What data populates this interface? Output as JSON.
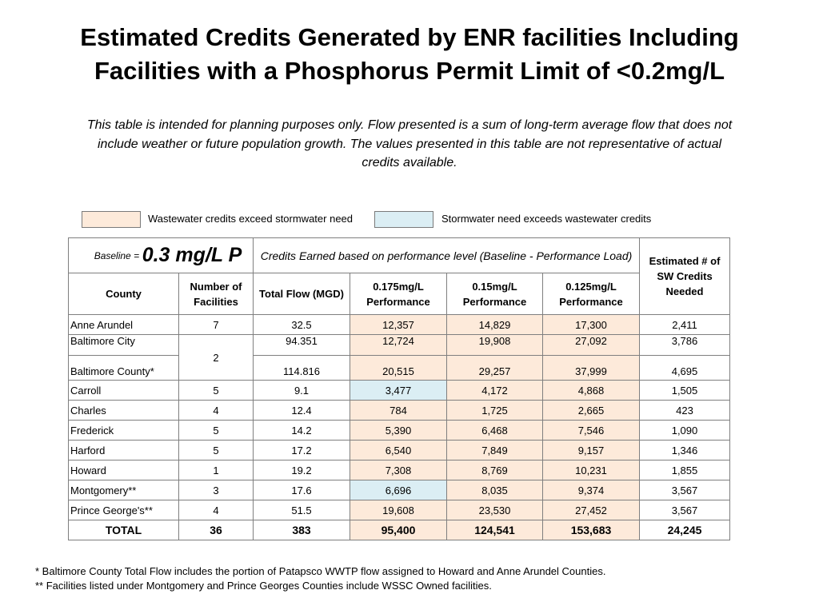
{
  "title_line1": "Estimated Credits Generated by ENR facilities Including",
  "title_line2": "Facilities with a Phosphorus Permit Limit of <0.2mg/L",
  "subtitle_line1": "This table is intended for planning purposes only. Flow presented is a sum of long-term average flow that does not",
  "subtitle_line2": "include weather or future population growth. The values presented in this table are not representative of actual",
  "subtitle_line3": "credits available.",
  "legend": {
    "peach_label": "Wastewater credits exceed stormwater need",
    "blue_label": "Stormwater need exceeds wastewater credits",
    "peach_color": "#fdeada",
    "blue_color": "#dbeef4"
  },
  "table": {
    "baseline_label": "Baseline =",
    "baseline_value": "0.3 mg/L P",
    "credits_header": "Credits Earned based on performance level (Baseline - Performance Load)",
    "estimated_header": "Estimated # of SW Credits Needed",
    "col_county": "County",
    "col_facilities": "Number of Facilities",
    "col_flow": "Total Flow (MGD)",
    "col_p175": "0.175mg/L Performance",
    "col_p15": "0.15mg/L Performance",
    "col_p125": "0.125mg/L Performance",
    "rows": [
      {
        "county": "Anne Arundel",
        "facilities": "7",
        "flow": "32.5",
        "p175": "12,357",
        "p15": "14,829",
        "p125": "17,300",
        "sw": "2,411"
      },
      {
        "county": "Baltimore City",
        "facilities": "2",
        "flow": "94.351",
        "p175": "12,724",
        "p15": "19,908",
        "p125": "27,092",
        "sw": "3,786"
      },
      {
        "county": "Baltimore County*",
        "facilities": "",
        "flow": "114.816",
        "p175": "20,515",
        "p15": "29,257",
        "p125": "37,999",
        "sw": "4,695"
      },
      {
        "county": "Carroll",
        "facilities": "5",
        "flow": "9.1",
        "p175": "3,477",
        "p15": "4,172",
        "p125": "4,868",
        "sw": "1,505"
      },
      {
        "county": "Charles",
        "facilities": "4",
        "flow": "12.4",
        "p175": "784",
        "p15": "1,725",
        "p125": "2,665",
        "sw": "423"
      },
      {
        "county": "Frederick",
        "facilities": "5",
        "flow": "14.2",
        "p175": "5,390",
        "p15": "6,468",
        "p125": "7,546",
        "sw": "1,090"
      },
      {
        "county": "Harford",
        "facilities": "5",
        "flow": "17.2",
        "p175": "6,540",
        "p15": "7,849",
        "p125": "9,157",
        "sw": "1,346"
      },
      {
        "county": "Howard",
        "facilities": "1",
        "flow": "19.2",
        "p175": "7,308",
        "p15": "8,769",
        "p125": "10,231",
        "sw": "1,855"
      },
      {
        "county": "Montgomery**",
        "facilities": "3",
        "flow": "17.6",
        "p175": "6,696",
        "p15": "8,035",
        "p125": "9,374",
        "sw": "3,567"
      },
      {
        "county": "Prince George's**",
        "facilities": "4",
        "flow": "51.5",
        "p175": "19,608",
        "p15": "23,530",
        "p125": "27,452",
        "sw": "3,567"
      }
    ],
    "total": {
      "county": "TOTAL",
      "facilities": "36",
      "flow": "383",
      "p175": "95,400",
      "p15": "124,541",
      "p125": "153,683",
      "sw": "24,245"
    }
  },
  "footnote1": "* Baltimore County Total Flow includes the portion of Patapsco WWTP flow assigned to Howard and Anne Arundel Counties.",
  "footnote2": "** Facilities listed under Montgomery and Prince Georges Counties include WSSC Owned facilities."
}
